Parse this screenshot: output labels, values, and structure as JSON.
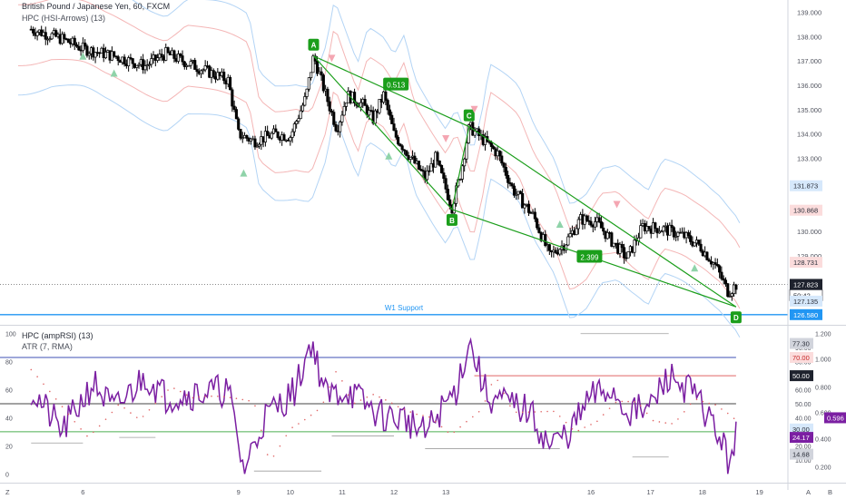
{
  "header": {
    "symbol": "British Pound / Japanese Yen, 60, FXCM",
    "indicator": "HPC (HSI-Arrows) (13)"
  },
  "lower_header": {
    "indicator1": "HPC (ampRSI) (13)",
    "indicator2": "ATR (7, RMA)"
  },
  "colors": {
    "up": "#26a69a",
    "down": "#000000",
    "pattern": "#1b9e1b",
    "support": "#2196f3",
    "rsi": "#7b1fa2",
    "band_upper": "#f4b6b6",
    "band_lower": "#b3d4f5"
  },
  "price_axis_ticks": [
    "139.000",
    "138.000",
    "137.000",
    "136.000",
    "135.000",
    "134.000",
    "133.000",
    "132.000",
    "131.000",
    "130.000",
    "129.000"
  ],
  "price_labels": [
    {
      "text": "131.873",
      "kind": "blue"
    },
    {
      "text": "130.868",
      "kind": "red"
    },
    {
      "text": "128.731",
      "kind": "red"
    },
    {
      "text": "127.823",
      "kind": "dark"
    },
    {
      "text": "50:42",
      "kind": "white"
    },
    {
      "text": "127.135",
      "kind": "blue"
    },
    {
      "text": "126.580",
      "kind": "solidblue"
    }
  ],
  "support_label": "W1 Support",
  "pattern_points": [
    {
      "label": "A",
      "x": 10.45,
      "y": 137.2
    },
    {
      "label": "B",
      "x": 13.12,
      "y": 130.9
    },
    {
      "label": "C",
      "x": 13.45,
      "y": 134.3
    },
    {
      "label": "D",
      "x": 18.6,
      "y": 126.9
    }
  ],
  "ratio_labels": [
    "0.513",
    "2.399"
  ],
  "x_axis_labels": [
    "6",
    "9",
    "10",
    "11",
    "12",
    "13",
    "16",
    "17",
    "18",
    "19"
  ],
  "lower_left_ticks": [
    "100",
    "80",
    "60",
    "40",
    "20",
    "0"
  ],
  "lower_right_ticks": [
    "1.200",
    "1.000",
    "0.800",
    "0.600",
    "0.400",
    "0.200"
  ],
  "lower_right_ticks2": [
    "90.00",
    "80.00",
    "60.00",
    "50.00",
    "40.00",
    "20.00",
    "10.00"
  ],
  "lower_labels": [
    {
      "text": "77.30",
      "kind": "gray"
    },
    {
      "text": "70.00",
      "kind": "pink"
    },
    {
      "text": "50.00",
      "kind": "dark"
    },
    {
      "text": "30.00",
      "kind": "blue"
    },
    {
      "text": "24.17",
      "kind": "purple"
    },
    {
      "text": "14.68",
      "kind": "gray"
    },
    {
      "text": "0.596",
      "kind": "purple"
    }
  ],
  "corner_labels": [
    "Z",
    "A",
    "B"
  ],
  "chart_data": {
    "type": "candlestick",
    "title": "British Pound / Japanese Yen, 60, FXCM",
    "ylim": [
      126.2,
      139.5
    ],
    "support_level": 126.58,
    "last_price": 127.823,
    "ohlc_anchors": [
      {
        "x": 5.0,
        "price": 138.3
      },
      {
        "x": 5.6,
        "price": 137.9
      },
      {
        "x": 6.0,
        "price": 137.5
      },
      {
        "x": 6.6,
        "price": 137.2
      },
      {
        "x": 7.2,
        "price": 136.8
      },
      {
        "x": 7.6,
        "price": 137.3
      },
      {
        "x": 8.8,
        "price": 136.2
      },
      {
        "x": 9.0,
        "price": 134.0
      },
      {
        "x": 9.3,
        "price": 133.7
      },
      {
        "x": 9.7,
        "price": 134.0
      },
      {
        "x": 10.0,
        "price": 133.9
      },
      {
        "x": 10.3,
        "price": 135.5
      },
      {
        "x": 10.45,
        "price": 137.2
      },
      {
        "x": 10.7,
        "price": 135.5
      },
      {
        "x": 10.9,
        "price": 134.2
      },
      {
        "x": 11.1,
        "price": 135.6
      },
      {
        "x": 11.4,
        "price": 135.2
      },
      {
        "x": 11.6,
        "price": 134.6
      },
      {
        "x": 11.8,
        "price": 135.6
      },
      {
        "x": 12.0,
        "price": 134.0
      },
      {
        "x": 12.3,
        "price": 133.1
      },
      {
        "x": 12.6,
        "price": 132.2
      },
      {
        "x": 12.8,
        "price": 133.0
      },
      {
        "x": 13.12,
        "price": 131.0
      },
      {
        "x": 13.3,
        "price": 132.5
      },
      {
        "x": 13.45,
        "price": 134.3
      },
      {
        "x": 13.7,
        "price": 133.8
      },
      {
        "x": 14.0,
        "price": 133.2
      },
      {
        "x": 14.3,
        "price": 131.7
      },
      {
        "x": 14.7,
        "price": 130.6
      },
      {
        "x": 15.0,
        "price": 129.0
      },
      {
        "x": 15.3,
        "price": 129.5
      },
      {
        "x": 15.6,
        "price": 130.5
      },
      {
        "x": 15.9,
        "price": 130.4
      },
      {
        "x": 16.2,
        "price": 129.6
      },
      {
        "x": 16.5,
        "price": 128.9
      },
      {
        "x": 16.8,
        "price": 130.2
      },
      {
        "x": 17.2,
        "price": 130.1
      },
      {
        "x": 17.6,
        "price": 129.8
      },
      {
        "x": 17.9,
        "price": 129.4
      },
      {
        "x": 18.2,
        "price": 128.6
      },
      {
        "x": 18.45,
        "price": 127.5
      },
      {
        "x": 18.6,
        "price": 127.8
      }
    ],
    "series": [
      {
        "name": "HPC (ampRSI) (13)",
        "panel": "lower"
      },
      {
        "name": "ATR (7, RMA)",
        "panel": "lower"
      }
    ],
    "rsi_levels": [
      83,
      70,
      50,
      30
    ],
    "rsi_ylim": [
      -5,
      105
    ]
  }
}
